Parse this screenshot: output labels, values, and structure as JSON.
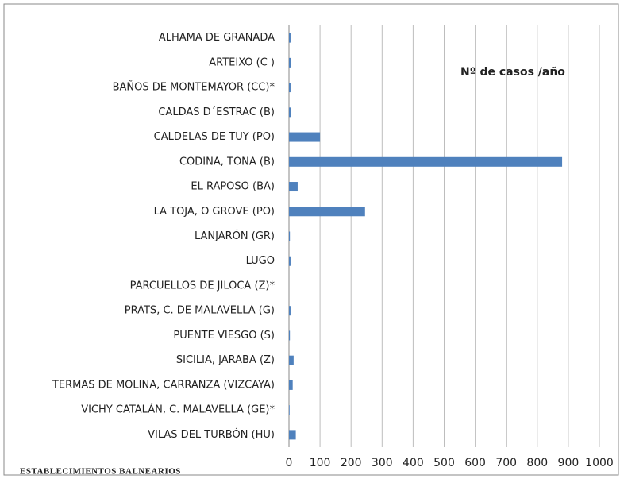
{
  "chart_data": {
    "type": "bar",
    "orientation": "horizontal",
    "title": "Nº de casos /año",
    "y_label": "ESTABLECIMIENTOS BALNEARIOS",
    "categories": [
      "ALHAMA DE GRANADA",
      "ARTEIXO (C )",
      "BAÑOS DE MONTEMAYOR (CC)*",
      "CALDAS D´ESTRAC (B)",
      "CALDELAS DE TUY (PO)",
      "CODINA, TONA (B)",
      "EL RAPOSO (BA)",
      "LA TOJA, O GROVE  (PO)",
      "LANJARÓN (GR)",
      "LUGO",
      "PARCUELLOS DE JILOCA (Z)*",
      "PRATS, C. DE MALAVELLA (G)",
      "PUENTE VIESGO (S)",
      "SICILIA, JARABA  (Z)",
      "TERMAS DE MOLINA, CARRANZA (VIZCAYA)",
      "VICHY CATALÁN, C. MALAVELLA (GE)*",
      "VILAS DEL TURBÓN (HU)"
    ],
    "values": [
      5,
      7,
      5,
      7,
      100,
      880,
      28,
      245,
      3,
      5,
      0,
      5,
      3,
      15,
      12,
      2,
      22
    ],
    "color": "#4f81bd",
    "xlim": [
      0,
      1000
    ],
    "xticks": [
      0,
      100,
      200,
      300,
      400,
      500,
      600,
      700,
      800,
      900,
      1000
    ],
    "grid": true
  }
}
